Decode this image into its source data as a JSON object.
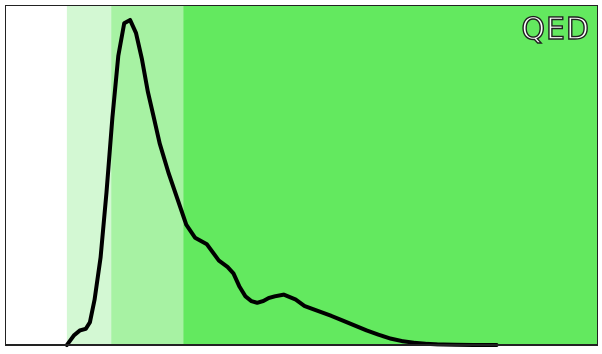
{
  "chart_data": {
    "type": "area",
    "title": "QED",
    "xlabel": "",
    "ylabel": "",
    "xlim": [
      0,
      1
    ],
    "ylim": [
      0,
      1.05
    ],
    "grid": false,
    "bands": [
      {
        "x_start": 0.0,
        "x_end": 0.103,
        "color": "#ffffff"
      },
      {
        "x_start": 0.103,
        "x_end": 0.178,
        "color": "#d3f8d3"
      },
      {
        "x_start": 0.178,
        "x_end": 0.3,
        "color": "#a7f2a3"
      },
      {
        "x_start": 0.3,
        "x_end": 1.0,
        "color": "#63e95f"
      }
    ],
    "curve": {
      "color": "#000000",
      "x": [
        0.103,
        0.115,
        0.125,
        0.135,
        0.142,
        0.15,
        0.16,
        0.17,
        0.18,
        0.19,
        0.2,
        0.21,
        0.22,
        0.23,
        0.24,
        0.25,
        0.26,
        0.275,
        0.29,
        0.305,
        0.32,
        0.34,
        0.36,
        0.375,
        0.385,
        0.395,
        0.405,
        0.415,
        0.425,
        0.435,
        0.445,
        0.455,
        0.47,
        0.49,
        0.505,
        0.52,
        0.535,
        0.55,
        0.57,
        0.59,
        0.61,
        0.63,
        0.65,
        0.67,
        0.69,
        0.71,
        0.73,
        0.76,
        0.79,
        0.83
      ],
      "y": [
        0.0,
        0.03,
        0.045,
        0.05,
        0.07,
        0.14,
        0.27,
        0.47,
        0.7,
        0.89,
        0.99,
        1.0,
        0.96,
        0.88,
        0.78,
        0.7,
        0.62,
        0.53,
        0.45,
        0.37,
        0.33,
        0.31,
        0.26,
        0.24,
        0.22,
        0.18,
        0.15,
        0.135,
        0.13,
        0.135,
        0.145,
        0.15,
        0.155,
        0.14,
        0.12,
        0.11,
        0.1,
        0.09,
        0.075,
        0.06,
        0.045,
        0.032,
        0.02,
        0.012,
        0.007,
        0.004,
        0.002,
        0.001,
        0.0,
        0.0
      ]
    }
  }
}
